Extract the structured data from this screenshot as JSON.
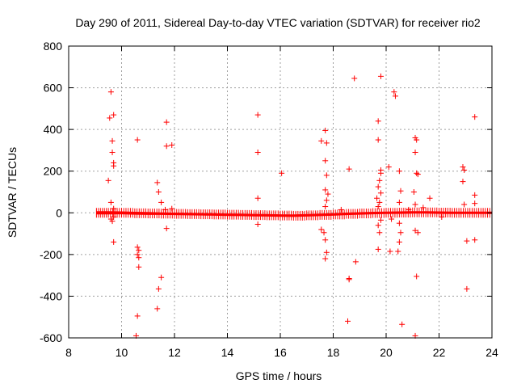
{
  "chart_data": {
    "type": "scatter",
    "title": "Day 290 of 2011, Sidereal Day-to-day VTEC variation (SDTVAR) for receiver rio2",
    "xlabel": "GPS time / hours",
    "ylabel": "SDTVAR / TECUs",
    "xlim": [
      8,
      24
    ],
    "ylim": [
      -600,
      800
    ],
    "xticks": [
      "8",
      "10",
      "12",
      "14",
      "16",
      "18",
      "20",
      "22",
      "24"
    ],
    "yticks": [
      "-600",
      "-400",
      "-200",
      "0",
      "200",
      "400",
      "600",
      "800"
    ],
    "grid": true,
    "marker": "plus",
    "color": "#ff0000",
    "band": {
      "x": [
        9.05,
        9.5,
        10.0,
        10.5,
        11.0,
        11.5,
        12.0,
        12.5,
        13.0,
        13.5,
        14.0,
        14.5,
        15.0,
        15.5,
        16.0,
        16.5,
        17.0,
        17.5,
        18.0,
        18.5,
        19.0,
        19.5,
        20.0,
        20.5,
        21.0,
        21.5,
        22.0,
        22.5,
        23.0,
        23.5,
        24.0
      ],
      "half_width": [
        8,
        8,
        7,
        7,
        7,
        6,
        6,
        6,
        6,
        6,
        6,
        6,
        6,
        6,
        6,
        6,
        6,
        6,
        6,
        6,
        6,
        6,
        6,
        6,
        6,
        6,
        6,
        6,
        6,
        6,
        6
      ],
      "center": [
        0,
        0,
        0,
        -2,
        -3,
        -4,
        -5,
        -6,
        -7,
        -8,
        -9,
        -10,
        -11,
        -12,
        -13,
        -14,
        -12,
        -10,
        -8,
        -5,
        -3,
        -1,
        0,
        1,
        2,
        2,
        1,
        0,
        0,
        0,
        0
      ]
    },
    "points": [
      {
        "x": 9.6,
        "y": 580
      },
      {
        "x": 9.7,
        "y": 470
      },
      {
        "x": 9.55,
        "y": 455
      },
      {
        "x": 9.65,
        "y": 345
      },
      {
        "x": 9.65,
        "y": 290
      },
      {
        "x": 9.7,
        "y": 240
      },
      {
        "x": 9.7,
        "y": 225
      },
      {
        "x": 9.5,
        "y": 155
      },
      {
        "x": 9.6,
        "y": 50
      },
      {
        "x": 9.7,
        "y": 20
      },
      {
        "x": 9.7,
        "y": -20
      },
      {
        "x": 9.65,
        "y": -40
      },
      {
        "x": 9.6,
        "y": -30
      },
      {
        "x": 9.7,
        "y": -140
      },
      {
        "x": 10.6,
        "y": 350
      },
      {
        "x": 10.6,
        "y": -165
      },
      {
        "x": 10.65,
        "y": -180
      },
      {
        "x": 10.6,
        "y": -200
      },
      {
        "x": 10.65,
        "y": -215
      },
      {
        "x": 10.65,
        "y": -260
      },
      {
        "x": 10.6,
        "y": -495
      },
      {
        "x": 10.55,
        "y": -590
      },
      {
        "x": 11.35,
        "y": 145
      },
      {
        "x": 11.4,
        "y": 100
      },
      {
        "x": 11.5,
        "y": 50
      },
      {
        "x": 11.5,
        "y": -310
      },
      {
        "x": 11.4,
        "y": -365
      },
      {
        "x": 11.35,
        "y": -460
      },
      {
        "x": 11.7,
        "y": 435
      },
      {
        "x": 11.7,
        "y": 320
      },
      {
        "x": 11.9,
        "y": 325
      },
      {
        "x": 11.65,
        "y": 15
      },
      {
        "x": 11.7,
        "y": -75
      },
      {
        "x": 11.9,
        "y": 20
      },
      {
        "x": 15.15,
        "y": 470
      },
      {
        "x": 15.15,
        "y": 290
      },
      {
        "x": 15.15,
        "y": 70
      },
      {
        "x": 15.15,
        "y": -55
      },
      {
        "x": 16.05,
        "y": 190
      },
      {
        "x": 17.7,
        "y": 395
      },
      {
        "x": 17.55,
        "y": 345
      },
      {
        "x": 17.75,
        "y": 335
      },
      {
        "x": 17.7,
        "y": 250
      },
      {
        "x": 17.75,
        "y": 180
      },
      {
        "x": 17.7,
        "y": 110
      },
      {
        "x": 17.8,
        "y": 90
      },
      {
        "x": 17.75,
        "y": 60
      },
      {
        "x": 17.7,
        "y": 30
      },
      {
        "x": 17.55,
        "y": -80
      },
      {
        "x": 17.65,
        "y": -95
      },
      {
        "x": 17.7,
        "y": -130
      },
      {
        "x": 17.75,
        "y": -190
      },
      {
        "x": 17.7,
        "y": -220
      },
      {
        "x": 18.8,
        "y": 645
      },
      {
        "x": 18.6,
        "y": 210
      },
      {
        "x": 18.85,
        "y": -235
      },
      {
        "x": 18.6,
        "y": -315
      },
      {
        "x": 18.6,
        "y": -320
      },
      {
        "x": 18.55,
        "y": -520
      },
      {
        "x": 19.8,
        "y": 655
      },
      {
        "x": 19.7,
        "y": 440
      },
      {
        "x": 19.7,
        "y": 350
      },
      {
        "x": 19.8,
        "y": 205
      },
      {
        "x": 19.8,
        "y": 190
      },
      {
        "x": 19.75,
        "y": 155
      },
      {
        "x": 19.7,
        "y": 125
      },
      {
        "x": 19.8,
        "y": 95
      },
      {
        "x": 19.65,
        "y": 70
      },
      {
        "x": 19.75,
        "y": 50
      },
      {
        "x": 19.7,
        "y": 30
      },
      {
        "x": 19.8,
        "y": -35
      },
      {
        "x": 19.7,
        "y": -60
      },
      {
        "x": 19.75,
        "y": -95
      },
      {
        "x": 19.7,
        "y": -175
      },
      {
        "x": 20.1,
        "y": 220
      },
      {
        "x": 20.15,
        "y": -185
      },
      {
        "x": 20.2,
        "y": -30
      },
      {
        "x": 20.3,
        "y": 580
      },
      {
        "x": 20.35,
        "y": 560
      },
      {
        "x": 20.5,
        "y": 200
      },
      {
        "x": 20.55,
        "y": 105
      },
      {
        "x": 20.5,
        "y": 50
      },
      {
        "x": 20.5,
        "y": -50
      },
      {
        "x": 20.55,
        "y": -95
      },
      {
        "x": 20.5,
        "y": -140
      },
      {
        "x": 20.45,
        "y": -185
      },
      {
        "x": 20.6,
        "y": -535
      },
      {
        "x": 21.1,
        "y": 360
      },
      {
        "x": 21.15,
        "y": 350
      },
      {
        "x": 21.1,
        "y": 290
      },
      {
        "x": 21.15,
        "y": 190
      },
      {
        "x": 21.2,
        "y": 185
      },
      {
        "x": 21.05,
        "y": 100
      },
      {
        "x": 21.1,
        "y": 40
      },
      {
        "x": 21.1,
        "y": -85
      },
      {
        "x": 21.2,
        "y": -95
      },
      {
        "x": 21.15,
        "y": -305
      },
      {
        "x": 21.1,
        "y": -590
      },
      {
        "x": 21.65,
        "y": 70
      },
      {
        "x": 22.9,
        "y": 220
      },
      {
        "x": 22.95,
        "y": 205
      },
      {
        "x": 22.9,
        "y": 150
      },
      {
        "x": 22.95,
        "y": 40
      },
      {
        "x": 23.05,
        "y": -135
      },
      {
        "x": 23.05,
        "y": -365
      },
      {
        "x": 23.35,
        "y": 460
      },
      {
        "x": 23.35,
        "y": 85
      },
      {
        "x": 23.35,
        "y": 45
      },
      {
        "x": 23.35,
        "y": -130
      },
      {
        "x": 20.85,
        "y": 15
      },
      {
        "x": 21.4,
        "y": 25
      },
      {
        "x": 22.1,
        "y": -20
      },
      {
        "x": 18.3,
        "y": 15
      }
    ]
  }
}
